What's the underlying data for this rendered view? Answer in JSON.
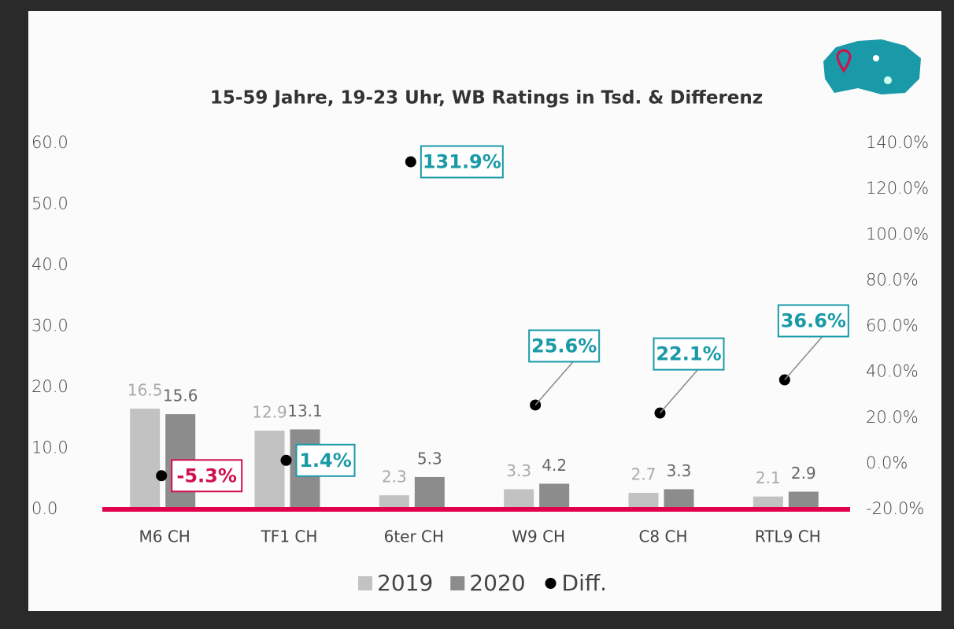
{
  "chart_data": {
    "type": "bar",
    "title": "15-59 Jahre, 19-23 Uhr, WB Ratings in Tsd. & Differenz",
    "categories": [
      "M6 CH",
      "TF1 CH",
      "6ter CH",
      "W9 CH",
      "C8 CH",
      "RTL9 CH"
    ],
    "series": [
      {
        "name": "2019",
        "color": "#c2c2c2",
        "values": [
          16.5,
          12.9,
          2.3,
          3.3,
          2.7,
          2.1
        ]
      },
      {
        "name": "2020",
        "color": "#8c8c8c",
        "values": [
          15.6,
          13.1,
          5.3,
          4.2,
          3.3,
          2.9
        ]
      },
      {
        "name": "Diff.",
        "color": "#000000",
        "axis": "y2",
        "type": "scatter",
        "values": [
          -5.3,
          1.4,
          131.9,
          25.6,
          22.1,
          36.6
        ],
        "value_labels": [
          "-5.3%",
          "1.4%",
          "131.9%",
          "25.6%",
          "22.1%",
          "36.6%"
        ]
      }
    ],
    "ylim": [
      0,
      60
    ],
    "yticks": [
      {
        "value": 0,
        "label": "0.0"
      },
      {
        "value": 10,
        "label": "10.0"
      },
      {
        "value": 20,
        "label": "20.0"
      },
      {
        "value": 30,
        "label": "30.0"
      },
      {
        "value": 40,
        "label": "40.0"
      },
      {
        "value": 50,
        "label": "50.0"
      },
      {
        "value": 60,
        "label": "60.0"
      }
    ],
    "y2lim": [
      -20,
      140
    ],
    "y2ticks": [
      {
        "value": -20,
        "label": "-20.0%"
      },
      {
        "value": 0,
        "label": "0.0%"
      },
      {
        "value": 20,
        "label": "20.0%"
      },
      {
        "value": 40,
        "label": "40.0%"
      },
      {
        "value": 60,
        "label": "60.0%"
      },
      {
        "value": 80,
        "label": "80.0%"
      },
      {
        "value": 100,
        "label": "100.0%"
      },
      {
        "value": 120,
        "label": "120.0%"
      },
      {
        "value": 140,
        "label": "140.0%"
      }
    ],
    "legend": "bottom"
  }
}
